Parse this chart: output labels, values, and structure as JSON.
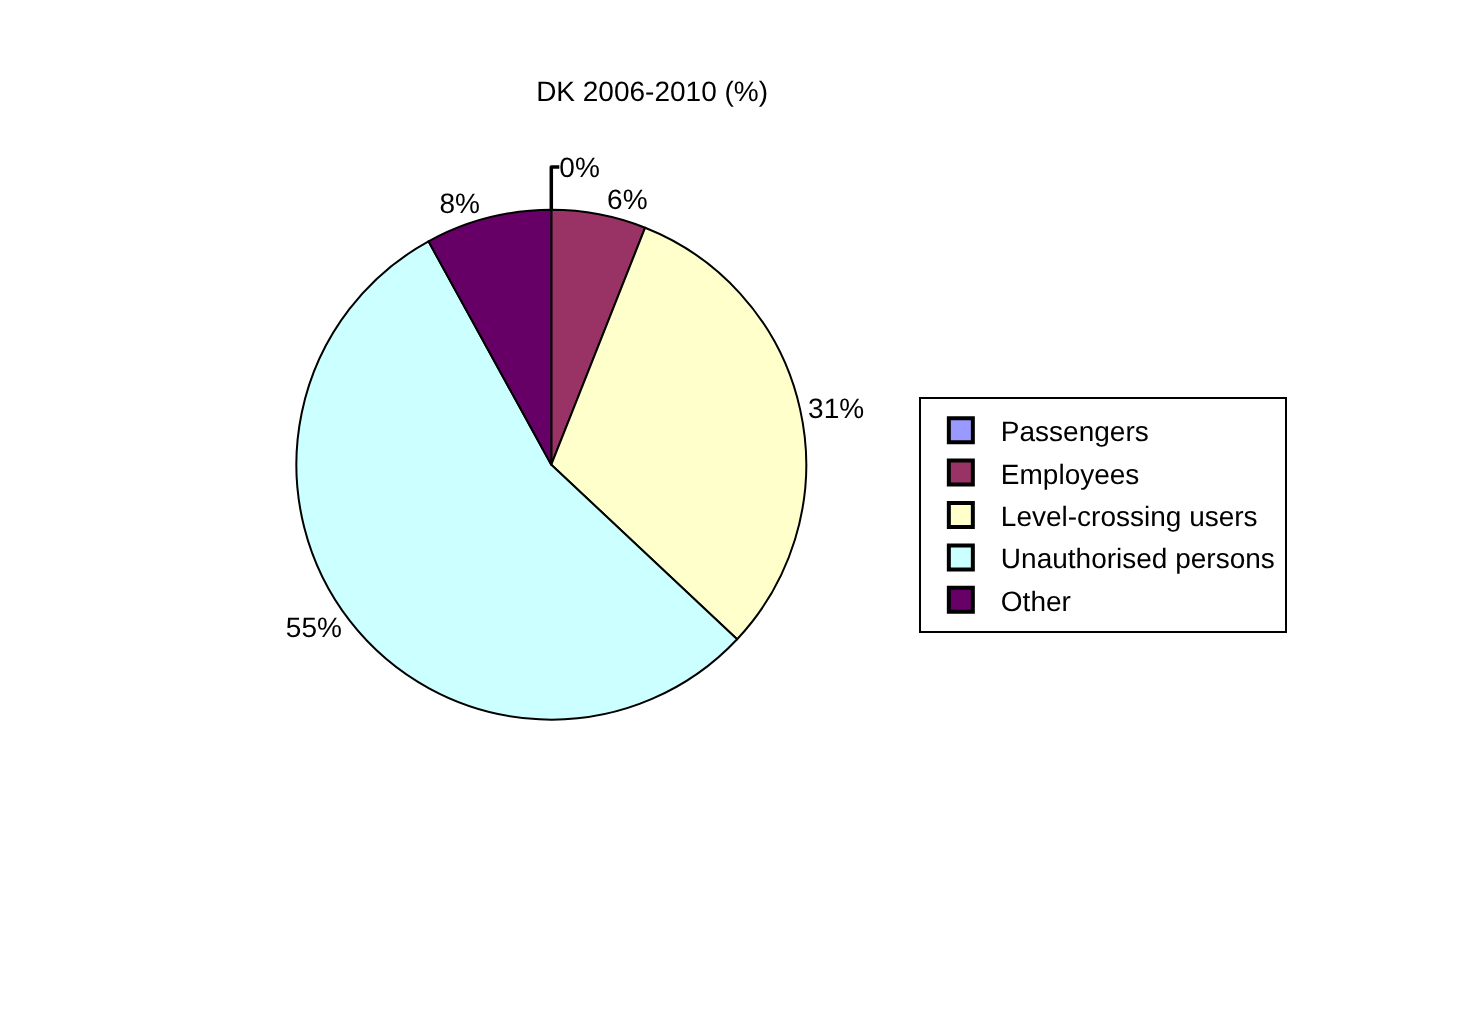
{
  "chart_data": {
    "type": "pie",
    "title": "DK 2006-2010 (%)",
    "categories": [
      "Passengers",
      "Employees",
      "Level-crossing users",
      "Unauthorised persons",
      "Other"
    ],
    "values": [
      0,
      6,
      31,
      55,
      8
    ],
    "value_labels": [
      "0%",
      "6%",
      "31%",
      "55%",
      "8%"
    ],
    "colors": [
      "#9999ff",
      "#993366",
      "#ffffcc",
      "#ccffff",
      "#660066"
    ],
    "legend": "right"
  }
}
